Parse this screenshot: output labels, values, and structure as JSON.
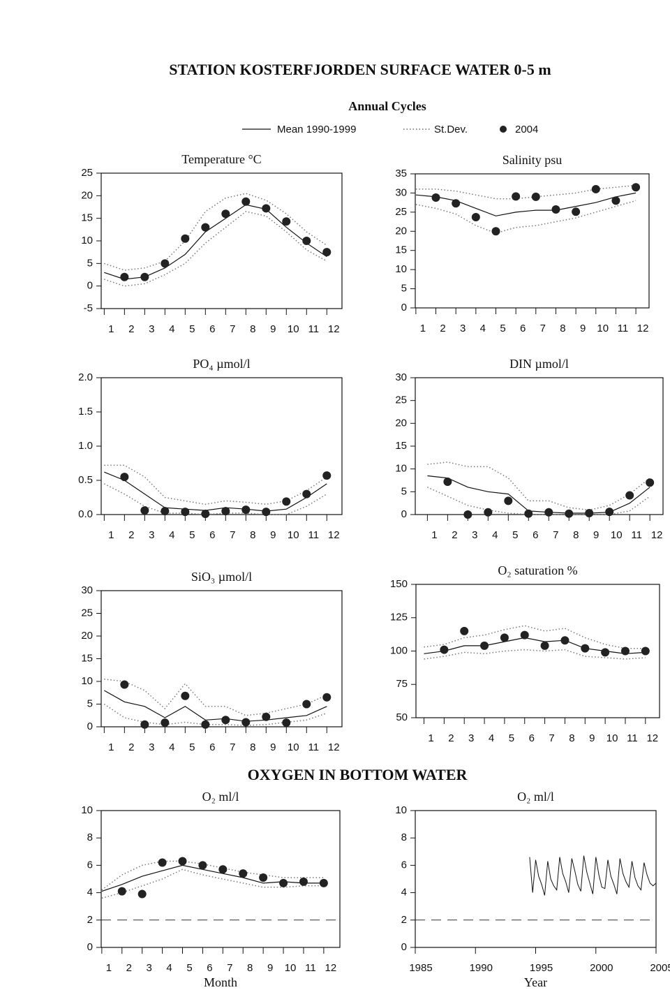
{
  "header": {
    "title": "STATION KOSTERFJORDEN SURFACE WATER 0-5 m",
    "subtitle": "Annual Cycles"
  },
  "legend": {
    "mean": "Mean 1990-1999",
    "sd": "St.Dev.",
    "obs": "2004"
  },
  "section_title": "OXYGEN IN BOTTOM WATER",
  "chart_data": [
    {
      "type": "line",
      "title": "Temperature °C",
      "x": [
        1,
        2,
        3,
        4,
        5,
        6,
        7,
        8,
        9,
        10,
        11,
        12
      ],
      "xlim": [
        0.85,
        12.75
      ],
      "xticks": [
        1,
        2,
        3,
        4,
        5,
        6,
        7,
        8,
        9,
        10,
        11,
        12
      ],
      "ylim": [
        -5,
        25
      ],
      "yticks": [
        -5,
        0,
        5,
        10,
        15,
        20,
        25
      ],
      "mean": [
        3,
        1.5,
        2,
        4,
        7,
        12,
        15,
        18,
        17,
        13,
        9.5,
        6.5
      ],
      "sd_high": [
        5,
        3.5,
        4,
        5.5,
        10,
        16.5,
        19.5,
        20.5,
        19,
        16,
        12,
        9
      ],
      "sd_low": [
        1.5,
        0,
        0.5,
        2.5,
        5,
        9.5,
        13,
        16.5,
        15.5,
        12,
        8,
        5.5
      ],
      "obs": [
        null,
        2,
        2,
        5,
        10.5,
        13,
        16,
        18.7,
        17.2,
        14.3,
        10,
        7.5
      ]
    },
    {
      "type": "line",
      "title": "Salinity psu",
      "x": [
        1,
        2,
        3,
        4,
        5,
        6,
        7,
        8,
        9,
        10,
        11,
        12
      ],
      "xlim": [
        0.97,
        12.66
      ],
      "xticks": [
        1,
        2,
        3,
        4,
        5,
        6,
        7,
        8,
        9,
        10,
        11,
        12
      ],
      "ylim": [
        0,
        35
      ],
      "yticks": [
        0,
        5,
        10,
        15,
        20,
        25,
        30,
        35
      ],
      "mean": [
        29.5,
        29,
        28,
        26,
        24,
        25,
        25.5,
        25.5,
        26.5,
        27.5,
        29,
        30
      ],
      "sd_high": [
        31,
        31,
        30.5,
        29.5,
        28.5,
        28.5,
        29,
        29.5,
        30,
        31,
        31.5,
        32
      ],
      "sd_low": [
        27,
        26,
        24.5,
        21.5,
        19.5,
        21,
        21.5,
        22.5,
        23.5,
        25,
        26.5,
        28
      ],
      "obs": [
        null,
        28.8,
        27.3,
        23.7,
        20,
        29.1,
        29,
        25.7,
        25.1,
        31,
        28,
        31.5
      ]
    },
    {
      "type": "line",
      "title": "PO₄ µmol/l",
      "x": [
        1,
        2,
        3,
        4,
        5,
        6,
        7,
        8,
        9,
        10,
        11,
        12
      ],
      "xlim": [
        0.85,
        12.75
      ],
      "xticks": [
        1,
        2,
        3,
        4,
        5,
        6,
        7,
        8,
        9,
        10,
        11,
        12
      ],
      "ylim": [
        0,
        2
      ],
      "yticks": [
        {
          "value": 0,
          "label": "0.0"
        },
        {
          "value": 0.5,
          "label": "0.5"
        },
        {
          "value": 1,
          "label": "1.0"
        },
        {
          "value": 1.5,
          "label": "1.5"
        },
        {
          "value": 2,
          "label": "2.0"
        }
      ],
      "mean": [
        0.62,
        0.5,
        0.3,
        0.1,
        0.08,
        0.06,
        0.1,
        0.08,
        0.05,
        0.08,
        0.25,
        0.45
      ],
      "sd_high": [
        0.72,
        0.72,
        0.55,
        0.25,
        0.2,
        0.15,
        0.2,
        0.18,
        0.15,
        0.2,
        0.35,
        0.55
      ],
      "sd_low": [
        0.45,
        0.3,
        0.12,
        0.02,
        0.02,
        0,
        0.02,
        0.02,
        0,
        0,
        0.12,
        0.3
      ],
      "obs": [
        null,
        0.55,
        0.06,
        0.05,
        0.04,
        0.01,
        0.05,
        0.07,
        0.04,
        0.19,
        0.3,
        0.57
      ]
    },
    {
      "type": "line",
      "title": "DIN µmol/l",
      "x": [
        1,
        2,
        3,
        4,
        5,
        6,
        7,
        8,
        9,
        10,
        11,
        12
      ],
      "xlim": [
        0.4,
        12.65
      ],
      "xticks": [
        1,
        2,
        3,
        4,
        5,
        6,
        7,
        8,
        9,
        10,
        11,
        12
      ],
      "ylim": [
        0,
        30
      ],
      "yticks": [
        0,
        5,
        10,
        15,
        20,
        25,
        30
      ],
      "mean": [
        8.5,
        8,
        6,
        5,
        4.5,
        0.8,
        0.5,
        0.3,
        0.3,
        0.5,
        2.5,
        6
      ],
      "sd_high": [
        11,
        11.5,
        10.5,
        10.5,
        8,
        3,
        3,
        1.5,
        1,
        2,
        4.5,
        8
      ],
      "sd_low": [
        6,
        4,
        2,
        1,
        0.3,
        0,
        0,
        0,
        0,
        0,
        0.8,
        4
      ],
      "obs": [
        null,
        7.2,
        0,
        0.5,
        3,
        0.2,
        0.5,
        0.2,
        0.3,
        0.6,
        4.2,
        7
      ]
    },
    {
      "type": "line",
      "title": "SiO₃ µmol/l",
      "x": [
        1,
        2,
        3,
        4,
        5,
        6,
        7,
        8,
        9,
        10,
        11,
        12
      ],
      "xlim": [
        0.85,
        12.75
      ],
      "xticks": [
        1,
        2,
        3,
        4,
        5,
        6,
        7,
        8,
        9,
        10,
        11,
        12
      ],
      "ylim": [
        0,
        30
      ],
      "yticks": [
        0,
        5,
        10,
        15,
        20,
        25,
        30
      ],
      "mean": [
        8,
        5.5,
        4.5,
        2,
        4.5,
        1.5,
        1.8,
        1.2,
        1.5,
        2,
        2.5,
        4.5
      ],
      "sd_high": [
        10.5,
        10,
        8,
        4,
        9.5,
        4.5,
        4.5,
        2.5,
        3,
        4,
        5,
        7
      ],
      "sd_low": [
        5,
        2,
        1,
        0.5,
        1,
        0.5,
        0.5,
        0.3,
        0.5,
        1,
        1.5,
        3
      ],
      "obs": [
        null,
        9.3,
        0.5,
        0.9,
        6.8,
        0.5,
        1.5,
        1,
        2.2,
        0.9,
        5,
        6.5
      ]
    },
    {
      "type": "line",
      "title": "O₂ saturation %",
      "x": [
        1,
        2,
        3,
        4,
        5,
        6,
        7,
        8,
        9,
        10,
        11,
        12
      ],
      "xlim": [
        0.6,
        12.7
      ],
      "xticks": [
        1,
        2,
        3,
        4,
        5,
        6,
        7,
        8,
        9,
        10,
        11,
        12
      ],
      "ylim": [
        50,
        150
      ],
      "yticks": [
        50,
        75,
        100,
        125,
        150
      ],
      "mean": [
        98,
        100,
        104,
        104,
        107,
        110,
        107,
        108,
        102,
        100,
        98,
        99
      ],
      "sd_high": [
        103,
        105,
        110,
        112,
        116,
        119,
        115,
        117,
        110,
        105,
        102,
        102
      ],
      "sd_low": [
        94,
        96,
        99,
        98,
        100,
        101,
        100,
        101,
        96,
        95,
        94,
        95
      ],
      "obs": [
        null,
        101,
        115,
        104,
        110,
        112,
        104,
        108,
        102,
        99,
        100,
        100
      ]
    },
    {
      "type": "line",
      "title": "O₂ ml/l",
      "xlabel": "Month",
      "x": [
        1,
        2,
        3,
        4,
        5,
        6,
        7,
        8,
        9,
        10,
        11,
        12
      ],
      "xlim": [
        0.97,
        12.8
      ],
      "xticks": [
        1,
        2,
        3,
        4,
        5,
        6,
        7,
        8,
        9,
        10,
        11,
        12
      ],
      "ylim": [
        0,
        10
      ],
      "yticks": [
        0,
        2,
        4,
        6,
        8,
        10
      ],
      "ref_line": 2,
      "mean": [
        4.1,
        4.6,
        5.2,
        5.6,
        6,
        5.7,
        5.4,
        5.1,
        4.7,
        4.8,
        4.7,
        4.7
      ],
      "sd_high": [
        4.2,
        5.3,
        6,
        6.3,
        6.3,
        6.1,
        5.8,
        5.5,
        5.3,
        5.1,
        5.1,
        5.1
      ],
      "sd_low": [
        3.6,
        4,
        4.5,
        5,
        5.7,
        5.3,
        5,
        4.7,
        4.4,
        4.4,
        4.5,
        4.5
      ],
      "obs": [
        null,
        4.1,
        3.9,
        6.2,
        6.3,
        6,
        5.7,
        5.4,
        5.1,
        4.7,
        4.8,
        4.7
      ]
    },
    {
      "type": "series",
      "title": "O₂ ml/l",
      "xlabel": "Year",
      "xlim": [
        1985,
        2005
      ],
      "xticks": [
        1985,
        1990,
        1995,
        2000,
        2005
      ],
      "ylim": [
        0,
        10
      ],
      "yticks": [
        0,
        2,
        4,
        6,
        8,
        10
      ],
      "ref_line": 2,
      "x": [
        1994.5,
        1994.75,
        1995,
        1995.25,
        1995.5,
        1995.75,
        1996,
        1996.25,
        1996.5,
        1996.75,
        1997,
        1997.25,
        1997.5,
        1997.75,
        1998,
        1998.25,
        1998.5,
        1998.75,
        1999,
        1999.25,
        1999.5,
        1999.75,
        2000,
        2000.25,
        2000.5,
        2000.75,
        2001,
        2001.25,
        2001.5,
        2001.75,
        2002,
        2002.25,
        2002.5,
        2002.75,
        2003,
        2003.25,
        2003.5,
        2003.75,
        2004,
        2004.25,
        2004.5,
        2004.75,
        2005
      ],
      "values": [
        6.6,
        4,
        6.4,
        5.2,
        4.6,
        3.8,
        6.3,
        5,
        4.5,
        4.2,
        6.6,
        5.4,
        4.8,
        4,
        6.5,
        5.6,
        4.6,
        4.1,
        6.7,
        5.5,
        4.7,
        3.9,
        6.6,
        5.3,
        4.4,
        4.3,
        6.4,
        5.2,
        4.6,
        3.9,
        6.5,
        5.4,
        4.8,
        4.4,
        6.3,
        5.1,
        4.5,
        4.2,
        6.2,
        5.3,
        4.7,
        4.5,
        4.7
      ]
    }
  ]
}
